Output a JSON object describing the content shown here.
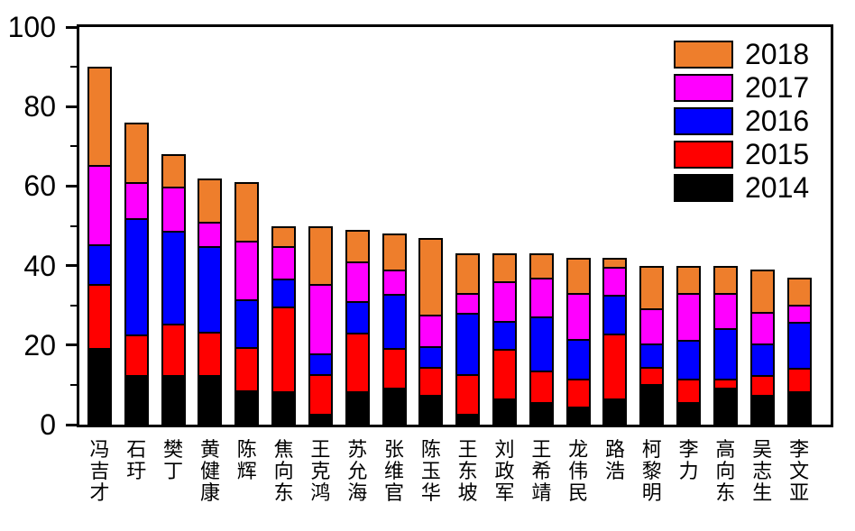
{
  "chart_data": {
    "type": "bar",
    "stacked": true,
    "title": "",
    "xlabel": "",
    "ylabel": "",
    "categories": [
      "冯吉才",
      "石玗",
      "樊丁",
      "黄健康",
      "陈辉",
      "焦向东",
      "王克鸿",
      "苏允海",
      "张维官",
      "陈玉华",
      "王东坡",
      "刘政军",
      "王希靖",
      "龙伟民",
      "路浩",
      "柯黎明",
      "李力",
      "高向东",
      "吴志生",
      "李文亚"
    ],
    "series": [
      {
        "name": "2014",
        "color": "#000000",
        "values": [
          19,
          12,
          12,
          12,
          8,
          8,
          2,
          8,
          9,
          7,
          2,
          6,
          5,
          4,
          6,
          10,
          5,
          9,
          7,
          8
        ]
      },
      {
        "name": "2015",
        "color": "#FF0000",
        "values": [
          16,
          10,
          13,
          11,
          11,
          22,
          10,
          15,
          10,
          7,
          10,
          13,
          8,
          7,
          17,
          4,
          6,
          2,
          5,
          6
        ]
      },
      {
        "name": "2016",
        "color": "#0000FF",
        "values": [
          10,
          30,
          24,
          22,
          12,
          7,
          5,
          8,
          14,
          5,
          16,
          7,
          14,
          10,
          10,
          6,
          10,
          13,
          8,
          12
        ]
      },
      {
        "name": "2017",
        "color": "#FF00FF",
        "values": [
          20,
          9,
          11,
          6,
          15,
          8,
          18,
          10,
          6,
          8,
          5,
          10,
          10,
          12,
          7,
          9,
          12,
          9,
          8,
          4
        ]
      },
      {
        "name": "2018",
        "color": "#EE7E2C",
        "values": [
          25,
          15,
          8,
          11,
          15,
          5,
          15,
          8,
          9,
          20,
          10,
          7,
          6,
          9,
          2,
          11,
          7,
          7,
          11,
          7
        ]
      }
    ],
    "totals": [
      90,
      76,
      68,
      62,
      61,
      50,
      50,
      49,
      48,
      47,
      43,
      43,
      43,
      42,
      42,
      40,
      40,
      40,
      39,
      37
    ],
    "ylim": [
      0,
      100
    ],
    "yticks": [
      "0",
      "20",
      "40",
      "60",
      "80",
      "100"
    ],
    "minor_yticks": [
      10,
      30,
      50,
      70,
      90
    ],
    "grid": false,
    "legend": {
      "position": "top-right-inside",
      "entries": [
        "2018",
        "2017",
        "2016",
        "2015",
        "2014"
      ]
    }
  }
}
